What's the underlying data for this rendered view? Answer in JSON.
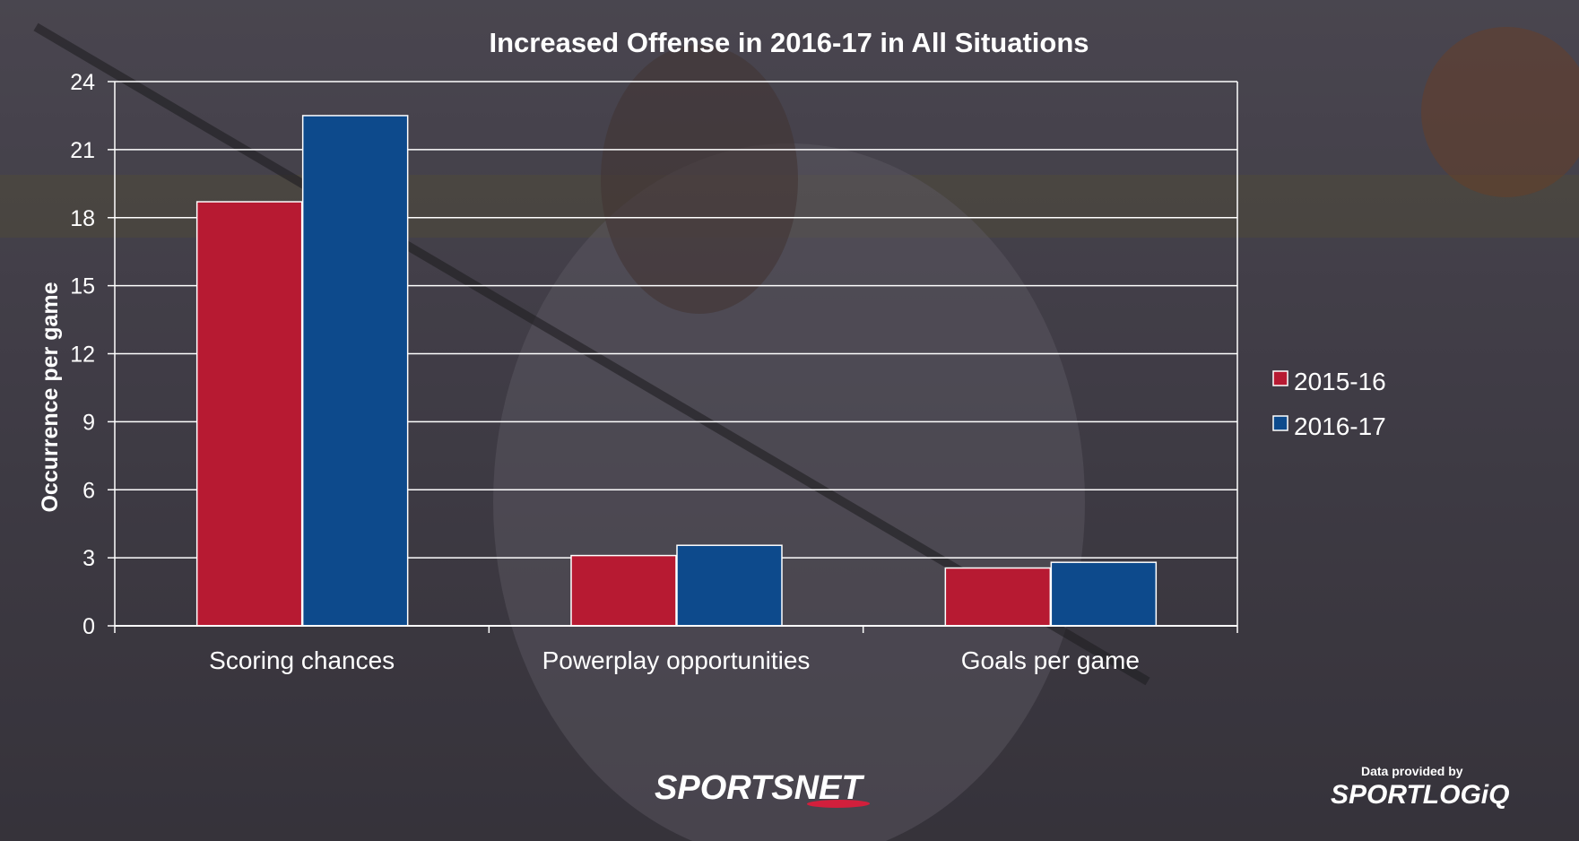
{
  "chart_data": {
    "type": "bar",
    "title": "Increased Offense in 2016-17 in All Situations",
    "xlabel": "",
    "ylabel": "Occurrence per game",
    "ylim": [
      0,
      24
    ],
    "yticks": [
      0,
      3,
      6,
      9,
      12,
      15,
      18,
      21,
      24
    ],
    "grid": true,
    "legend_position": "right",
    "categories": [
      "Scoring chances",
      "Powerplay opportunities",
      "Goals per game"
    ],
    "series": [
      {
        "name": "2015-16",
        "values": [
          18.7,
          3.1,
          2.55
        ],
        "color": "#b71a32"
      },
      {
        "name": "2016-17",
        "values": [
          22.5,
          3.55,
          2.8
        ],
        "color": "#0d4a8c"
      }
    ]
  },
  "branding": {
    "network": "SPORTSNET",
    "provider_caption": "Data provided by",
    "provider": "SPORTLOGiQ"
  }
}
